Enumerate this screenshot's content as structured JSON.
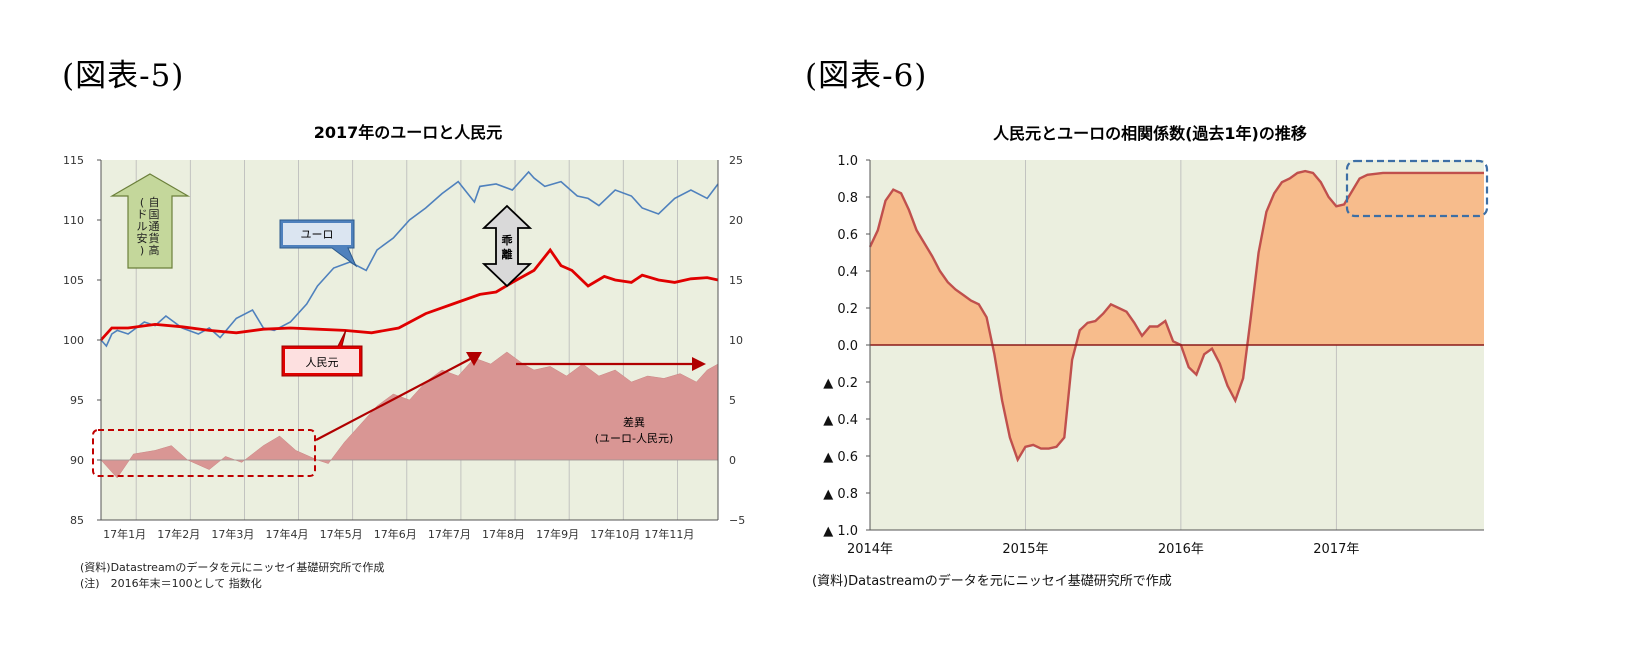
{
  "figures": {
    "left_label": "(図表-5)",
    "right_label": "(図表-6)"
  },
  "notes": {
    "left_source": "(資料)Datastreamのデータを元にニッセイ基礎研究所で作成",
    "left_note": "(注)　2016年末＝100として 指数化",
    "right_source": "(資料)Datastreamのデータを元にニッセイ基礎研究所で作成"
  },
  "colors": {
    "plot_bg": "#ebefdf",
    "euro": "#4f81bd",
    "yuan": "#e00000",
    "spread_fill": "#d99694",
    "corr_fill": "#f7bc8c",
    "corr_line": "#c0504d",
    "callout_green": "#c4d79b",
    "dashed_blue": "#3d6fa5",
    "dashed_red": "#c00000",
    "arrow_red": "#b00000"
  },
  "chart_data": [
    {
      "type": "line",
      "title": "2017年のユーロと人民元",
      "x_tick_labels": [
        "17年1月",
        "17年2月",
        "17年3月",
        "17年4月",
        "17年5月",
        "17年6月",
        "17年7月",
        "17年8月",
        "17年9月",
        "17年10月",
        "17年11月"
      ],
      "y_left": {
        "ticks": [
          "115",
          "110",
          "105",
          "100",
          "95",
          "90",
          "85"
        ],
        "ylim": [
          85,
          115
        ]
      },
      "y_right": {
        "ticks": [
          "25",
          "20",
          "15",
          "10",
          "5",
          "0",
          "−5"
        ],
        "ylim": [
          -5,
          25
        ]
      },
      "grid": "vertical",
      "series": [
        {
          "name": "ユーロ",
          "axis": "left",
          "x": [
            0,
            0.1,
            0.2,
            0.3,
            0.5,
            0.8,
            1.0,
            1.2,
            1.5,
            1.8,
            2.0,
            2.2,
            2.5,
            2.8,
            3.0,
            3.2,
            3.5,
            3.8,
            4.0,
            4.3,
            4.6,
            4.9,
            5.1,
            5.4,
            5.7,
            6.0,
            6.3,
            6.6,
            6.9,
            7.0,
            7.3,
            7.6,
            7.9,
            8.0,
            8.2,
            8.5,
            8.8,
            9.0,
            9.2,
            9.5,
            9.8,
            10.0,
            10.3,
            10.6,
            10.9,
            11.2,
            11.4
          ],
          "values": [
            100,
            99.5,
            100.5,
            100.8,
            100.5,
            101.5,
            101.2,
            102,
            101,
            100.5,
            101,
            100.2,
            101.8,
            102.5,
            101,
            100.8,
            101.5,
            103,
            104.5,
            106,
            106.5,
            105.8,
            107.5,
            108.5,
            110,
            111,
            112.2,
            113.2,
            111.5,
            112.8,
            113,
            112.5,
            114,
            113.5,
            112.8,
            113.2,
            112,
            111.8,
            111.2,
            112.5,
            112,
            111,
            110.5,
            111.8,
            112.5,
            111.8,
            113
          ]
        },
        {
          "name": "人民元",
          "axis": "left",
          "x": [
            0,
            0.2,
            0.5,
            1.0,
            1.5,
            2.0,
            2.5,
            3.0,
            3.5,
            4.0,
            4.5,
            5.0,
            5.5,
            6.0,
            6.5,
            7.0,
            7.3,
            7.6,
            8.0,
            8.3,
            8.5,
            8.7,
            9.0,
            9.3,
            9.5,
            9.8,
            10.0,
            10.3,
            10.6,
            10.9,
            11.2,
            11.4
          ],
          "values": [
            100,
            101,
            101,
            101.3,
            101.1,
            100.8,
            100.6,
            100.9,
            101,
            100.9,
            100.8,
            100.6,
            101,
            102.2,
            103,
            103.8,
            104,
            104.8,
            105.8,
            107.5,
            106.2,
            105.8,
            104.5,
            105.3,
            105,
            104.8,
            105.4,
            105,
            104.8,
            105.1,
            105.2,
            105
          ]
        },
        {
          "name": "差異\n(ユーロ-人民元)",
          "axis": "right",
          "type": "area",
          "x": [
            0,
            0.3,
            0.6,
            1.0,
            1.3,
            1.6,
            2.0,
            2.3,
            2.6,
            3.0,
            3.3,
            3.6,
            4.0,
            4.2,
            4.5,
            4.8,
            5.1,
            5.4,
            5.7,
            6.0,
            6.3,
            6.6,
            6.9,
            7.2,
            7.5,
            7.8,
            8.0,
            8.3,
            8.6,
            8.9,
            9.2,
            9.5,
            9.8,
            10.1,
            10.4,
            10.7,
            11.0,
            11.2,
            11.4
          ],
          "values": [
            0,
            -1.5,
            0.5,
            0.8,
            1.2,
            0,
            -0.8,
            0.3,
            -0.2,
            1.2,
            2,
            0.8,
            0,
            -0.3,
            1.5,
            3,
            4.5,
            5.5,
            5,
            6.5,
            7.5,
            7,
            8.5,
            8,
            9,
            8,
            7.5,
            7.8,
            7,
            8,
            7,
            7.5,
            6.5,
            7,
            6.8,
            7.2,
            6.5,
            7.5,
            8
          ]
        }
      ],
      "annotations": {
        "green_arrow": "自国通貨高\n(ドル安)",
        "divergence_arrow": "乖離",
        "euro_callout": "ユーロ",
        "yuan_callout": "人民元",
        "spread_label_1": "差異",
        "spread_label_2": "(ユーロ-人民元)"
      }
    },
    {
      "type": "area",
      "title": "人民元とユーロの相関係数(過去1年)の推移",
      "x_tick_labels": [
        "2014年",
        "2015年",
        "2016年",
        "2017年"
      ],
      "y_tick_labels": [
        "1.0",
        "0.8",
        "0.6",
        "0.4",
        "0.2",
        "0.0",
        "▲ 0.2",
        "▲ 0.4",
        "▲ 0.6",
        "▲ 0.8",
        "▲ 1.0"
      ],
      "ylim": [
        -1.0,
        1.0
      ],
      "xlim": [
        2014.0,
        2017.95
      ],
      "grid": "vertical",
      "series": [
        {
          "name": "",
          "x": [
            2014.0,
            2014.05,
            2014.1,
            2014.15,
            2014.2,
            2014.25,
            2014.3,
            2014.35,
            2014.4,
            2014.45,
            2014.5,
            2014.55,
            2014.6,
            2014.65,
            2014.7,
            2014.75,
            2014.8,
            2014.85,
            2014.9,
            2014.95,
            2015.0,
            2015.05,
            2015.1,
            2015.15,
            2015.2,
            2015.25,
            2015.3,
            2015.35,
            2015.4,
            2015.45,
            2015.5,
            2015.55,
            2015.6,
            2015.65,
            2015.7,
            2015.75,
            2015.8,
            2015.85,
            2015.9,
            2015.95,
            2016.0,
            2016.05,
            2016.1,
            2016.15,
            2016.2,
            2016.25,
            2016.3,
            2016.35,
            2016.4,
            2016.45,
            2016.5,
            2016.55,
            2016.6,
            2016.65,
            2016.7,
            2016.75,
            2016.8,
            2016.85,
            2016.9,
            2016.95,
            2017.0,
            2017.05,
            2017.1,
            2017.15,
            2017.2,
            2017.3,
            2017.4,
            2017.5,
            2017.6,
            2017.7,
            2017.8,
            2017.95
          ],
          "values": [
            0.53,
            0.62,
            0.78,
            0.84,
            0.82,
            0.73,
            0.62,
            0.55,
            0.48,
            0.4,
            0.34,
            0.3,
            0.27,
            0.24,
            0.22,
            0.15,
            -0.05,
            -0.3,
            -0.5,
            -0.62,
            -0.55,
            -0.54,
            -0.56,
            -0.56,
            -0.55,
            -0.5,
            -0.08,
            0.08,
            0.12,
            0.13,
            0.17,
            0.22,
            0.2,
            0.18,
            0.12,
            0.05,
            0.1,
            0.1,
            0.13,
            0.02,
            0.0,
            -0.12,
            -0.16,
            -0.05,
            -0.02,
            -0.1,
            -0.22,
            -0.3,
            -0.18,
            0.15,
            0.5,
            0.72,
            0.82,
            0.88,
            0.9,
            0.93,
            0.94,
            0.93,
            0.88,
            0.8,
            0.75,
            0.76,
            0.83,
            0.9,
            0.92,
            0.93,
            0.93,
            0.93,
            0.93,
            0.93,
            0.93,
            0.93
          ]
        }
      ]
    }
  ]
}
